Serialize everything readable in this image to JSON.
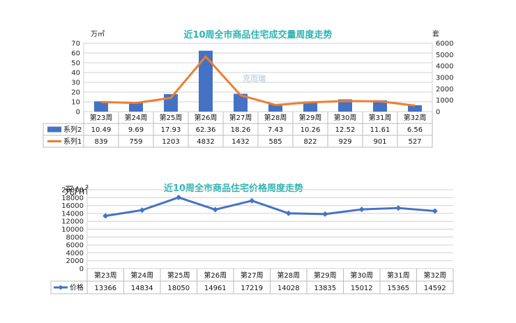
{
  "chart_data": [
    {
      "type": "bar",
      "title": "近10周全市商品住宅成交量周度走势",
      "categories": [
        "第23周",
        "第24周",
        "第25周",
        "第26周",
        "第27周",
        "第28周",
        "第29周",
        "第30周",
        "第31周",
        "第32周"
      ],
      "y_left_unit": "万㎡",
      "y_right_unit": "套",
      "ylim_left": [
        0,
        70
      ],
      "ylim_right": [
        0,
        6000
      ],
      "yticks_left": [
        "0",
        "10",
        "20",
        "30",
        "40",
        "50",
        "60",
        "70"
      ],
      "yticks_right": [
        "0",
        "1000",
        "2000",
        "3000",
        "4000",
        "5000",
        "6000"
      ],
      "series": [
        {
          "name": "系列2",
          "kind": "bar",
          "axis": "left",
          "color": "#4472c4",
          "values": [
            10.49,
            9.69,
            17.93,
            62.36,
            18.26,
            7.43,
            10.26,
            12.52,
            11.61,
            6.56
          ]
        },
        {
          "name": "系列1",
          "kind": "line",
          "axis": "right",
          "color": "#ed7d31",
          "values": [
            839,
            759,
            1203,
            4832,
            1432,
            585,
            822,
            929,
            901,
            527
          ]
        }
      ],
      "table_rows": [
        [
          "10.49",
          "9.69",
          "17.93",
          "62.36",
          "18.26",
          "7.43",
          "10.26",
          "12.52",
          "11.61",
          "6.56"
        ],
        [
          "839",
          "759",
          "1203",
          "4832",
          "1432",
          "585",
          "822",
          "929",
          "901",
          "527"
        ]
      ],
      "watermark": "克而瑞"
    },
    {
      "type": "line",
      "title": "近10周全市商品住宅价格周度走势",
      "categories": [
        "第23周",
        "第24周",
        "第25周",
        "第26周",
        "第27周",
        "第28周",
        "第29周",
        "第30周",
        "第31周",
        "第32周"
      ],
      "y_unit": "元/㎡",
      "ylim": [
        0,
        20000
      ],
      "yticks": [
        "0",
        "2000",
        "4000",
        "6000",
        "8000",
        "10000",
        "12000",
        "14000",
        "16000",
        "18000",
        "20000"
      ],
      "series": [
        {
          "name": "价格",
          "color": "#4472c4",
          "values": [
            13366,
            14834,
            18050,
            14961,
            17219,
            14028,
            13835,
            15012,
            15365,
            14592
          ]
        }
      ],
      "table_rows": [
        [
          "13366",
          "14834",
          "18050",
          "14961",
          "17219",
          "14028",
          "13835",
          "15012",
          "15365",
          "14592"
        ]
      ]
    }
  ]
}
